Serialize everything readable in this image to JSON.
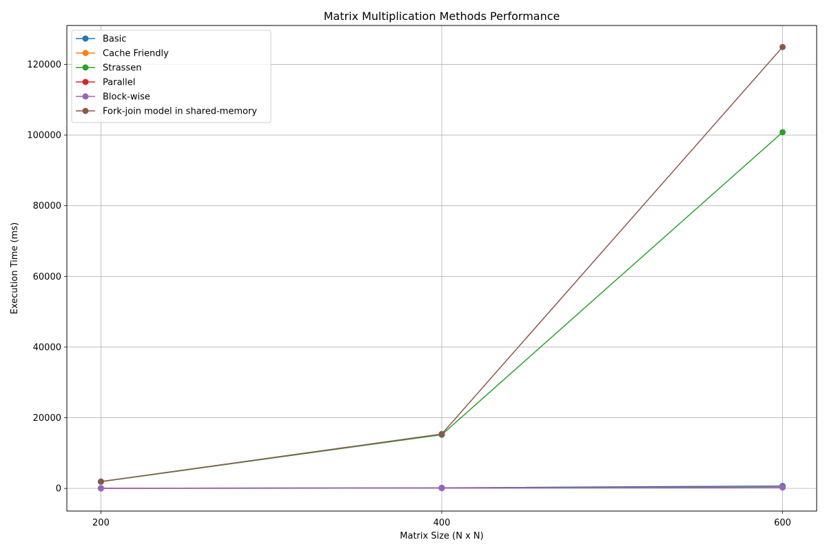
{
  "chart_data": {
    "type": "line",
    "title": "Matrix Multiplication Methods Performance",
    "xlabel": "Matrix Size (N x N)",
    "ylabel": "Execution Time (ms)",
    "x": [
      200,
      400,
      600
    ],
    "xticks": [
      "200",
      "400",
      "600"
    ],
    "xlim": [
      180,
      620
    ],
    "yticks": [
      0,
      20000,
      40000,
      60000,
      80000,
      100000,
      120000
    ],
    "ytick_labels": [
      "0",
      "20000",
      "40000",
      "60000",
      "80000",
      "100000",
      "120000"
    ],
    "ylim": [
      -6400,
      131000
    ],
    "grid": true,
    "legend_position": "upper-left",
    "series": [
      {
        "name": "Basic",
        "color": "#1f77b4",
        "values": [
          60,
          180,
          700
        ]
      },
      {
        "name": "Cache Friendly",
        "color": "#ff7f0e",
        "values": [
          40,
          120,
          350
        ]
      },
      {
        "name": "Strassen",
        "color": "#2ca02c",
        "values": [
          1900,
          15200,
          100800
        ]
      },
      {
        "name": "Parallel",
        "color": "#d62728",
        "values": [
          30,
          100,
          300
        ]
      },
      {
        "name": "Block-wise",
        "color": "#9467bd",
        "values": [
          30,
          90,
          250
        ]
      },
      {
        "name": "Fork-join model in shared-memory",
        "color": "#8c564b",
        "values": [
          1950,
          15400,
          124900
        ]
      }
    ]
  }
}
